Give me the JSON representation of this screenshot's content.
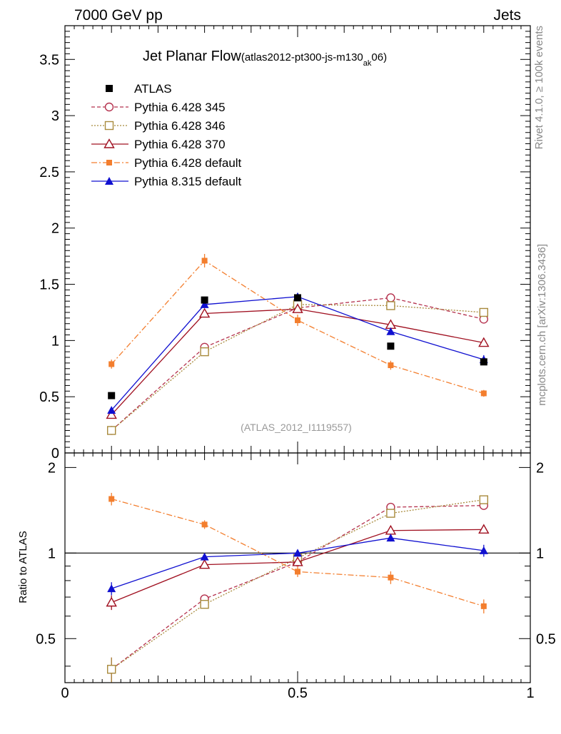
{
  "header": {
    "left": "7000 GeV pp",
    "right": "Jets"
  },
  "side_labels": {
    "rivet": "Rivet 4.1.0, ≥ 100k events",
    "mcplots": "mcplots.cern.ch [arXiv:1306.3436]"
  },
  "chart_data": {
    "type": "line",
    "title": "Jet Planar Flow",
    "subtitle": "(atlas2012-pt300-js-m130",
    "subtitle_sub": "ak",
    "subtitle_end": "06)",
    "watermark": "(ATLAS_2012_I1119557)",
    "x": [
      0.1,
      0.3,
      0.5,
      0.7,
      0.9
    ],
    "xlim": [
      0,
      1
    ],
    "ylim": [
      0,
      3.8
    ],
    "ratio_ylim": [
      0.35,
      2.25
    ],
    "xticks": [
      "0",
      "0.5",
      "1"
    ],
    "yticks": [
      "0",
      "0.5",
      "1",
      "1.5",
      "2",
      "2.5",
      "3",
      "3.5"
    ],
    "ratio_yticks": [
      "0.5",
      "1",
      "2"
    ],
    "ratio_ylabel": "Ratio to ATLAS",
    "data": {
      "name": "ATLAS",
      "values": [
        0.51,
        1.36,
        1.38,
        0.95,
        0.81
      ]
    },
    "series": [
      {
        "name": "Pythia 6.428 345",
        "color": "#b5324e",
        "values": [
          0.2,
          0.94,
          1.29,
          1.38,
          1.19
        ],
        "errors": [
          0.02,
          0.03,
          0.03,
          0.03,
          0.03
        ],
        "ratio": [
          0.39,
          0.69,
          0.93,
          1.45,
          1.47
        ],
        "marker": "circle-open",
        "dash": "5,3"
      },
      {
        "name": "Pythia 6.428 346",
        "color": "#a88a3c",
        "values": [
          0.2,
          0.9,
          1.32,
          1.31,
          1.25
        ],
        "errors": [
          0.02,
          0.03,
          0.03,
          0.03,
          0.03
        ],
        "ratio": [
          0.39,
          0.66,
          0.96,
          1.38,
          1.54
        ],
        "marker": "square-open",
        "dash": "2,2"
      },
      {
        "name": "Pythia 6.428 370",
        "color": "#a01020",
        "values": [
          0.34,
          1.24,
          1.28,
          1.14,
          0.98
        ],
        "errors": [
          0.02,
          0.03,
          0.03,
          0.03,
          0.03
        ],
        "ratio": [
          0.67,
          0.91,
          0.93,
          1.2,
          1.21
        ],
        "marker": "triangle-open",
        "dash": ""
      },
      {
        "name": "Pythia 6.428 default",
        "color": "#f37e2e",
        "values": [
          0.79,
          1.71,
          1.18,
          0.78,
          0.53
        ],
        "errors": [
          0.04,
          0.06,
          0.05,
          0.04,
          0.03
        ],
        "ratio": [
          1.55,
          1.26,
          0.86,
          0.82,
          0.65
        ],
        "marker": "square-filled",
        "dash": "8,3,2,3"
      },
      {
        "name": "Pythia 8.315 default",
        "color": "#1010d0",
        "values": [
          0.38,
          1.32,
          1.39,
          1.08,
          0.83
        ],
        "errors": [
          0.02,
          0.03,
          0.03,
          0.03,
          0.04
        ],
        "ratio": [
          0.75,
          0.97,
          1.0,
          1.13,
          1.02
        ],
        "marker": "triangle-filled",
        "dash": ""
      }
    ]
  }
}
